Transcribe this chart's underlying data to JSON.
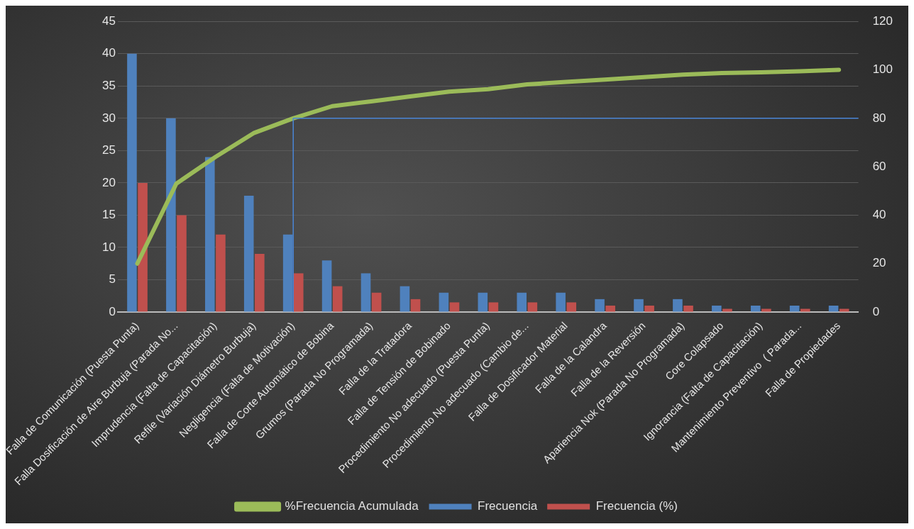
{
  "chart_data": {
    "type": "bar",
    "categories": [
      "Falla de Comunicación (Puesta Punta)",
      "Falla Dosificación de Aire Burbuja (Parada No...",
      "Imprudencia (Falta de Capacitación)",
      "Refile (Variación Diámetro Burbuja)",
      "Negligencia (Falta de Motivación)",
      "Falla de Corte Automático de Bobina",
      "Grumos (Parada No Programada)",
      "Falla de la Tratadora",
      "Falla de Tensión de Bobinado",
      "Procedimiento No adecuado (Puesta Punta)",
      "Procedimiento No adecuado (Cambio de...",
      "Falla de Dosificador Material",
      "Falla de la Calandra",
      "Falla de la Reversión",
      "Apariencia Nok (Parada No Programada)",
      "Core Colapsado",
      "Ignorancia (Falta de Capacitación)",
      "Mantenimiento Preventivo  ( Parada...",
      "Falla de Propiedades"
    ],
    "series": [
      {
        "name": "Frecuencia",
        "color": "#4f81bd",
        "values": [
          40,
          30,
          24,
          18,
          12,
          8,
          6,
          4,
          3,
          3,
          3,
          3,
          2,
          2,
          2,
          1,
          1,
          1,
          1
        ]
      },
      {
        "name": "Frecuencia (%)",
        "color": "#c0504d",
        "values": [
          20,
          15,
          12,
          9,
          6,
          4,
          3,
          2,
          1.5,
          1.5,
          1.5,
          1.5,
          1,
          1,
          1,
          0.5,
          0.5,
          0.5,
          0.5
        ]
      },
      {
        "name": "%Frecuencia Acumulada",
        "type": "line",
        "axis": "y2",
        "color": "#9bbb59",
        "marker": "none",
        "values": [
          20,
          53,
          64,
          74,
          80,
          85,
          87,
          89,
          91,
          92,
          94,
          95,
          96,
          97,
          98,
          98.7,
          99,
          99.4,
          100
        ]
      }
    ],
    "ylim": [
      0,
      45
    ],
    "yticks": [
      0,
      5,
      10,
      15,
      20,
      25,
      30,
      35,
      40,
      45
    ],
    "y2lim": [
      0,
      120
    ],
    "y2ticks": [
      0,
      20,
      40,
      60,
      80,
      100,
      120
    ],
    "ref_lines": [
      {
        "axis": "y2",
        "value": 80,
        "color": "#4a86d8"
      },
      {
        "axis": "x",
        "value": "Negligencia (Falta de Motivación)",
        "color": "#4a86d8"
      }
    ],
    "grid": "y",
    "legend": "bottom"
  }
}
